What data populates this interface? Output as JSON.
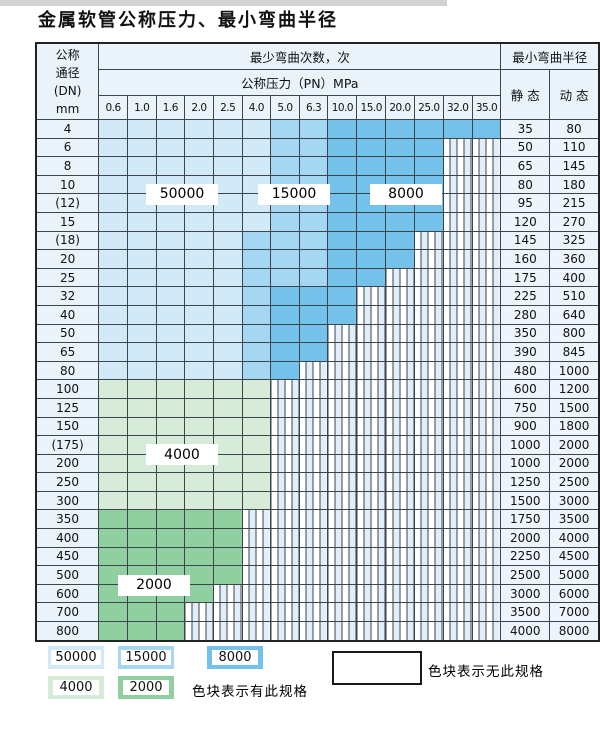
{
  "title": "金属软管公称压力、最小弯曲半径",
  "colors": {
    "light_blue": "#d2e9f8",
    "medium_blue": "#a6d7f2",
    "dark_blue": "#74c2ea",
    "light_green": "#d7ecd8",
    "medium_green": "#90cfa0",
    "header_bg": "#eaf2fa",
    "grid_line": "#3a454c"
  },
  "table": {
    "corner_header": [
      "公称",
      "通径",
      "(DN)",
      "mm"
    ],
    "bend_times_header": "最少弯曲次数，次",
    "radius_header": "最小弯曲半径",
    "pressure_header": "公称压力（PN）MPa",
    "static_label": "静 态",
    "dynamic_label": "动 态",
    "pressure_columns": [
      "0.6",
      "1.0",
      "1.6",
      "2.0",
      "2.5",
      "4.0",
      "5.0",
      "6.3",
      "10.0",
      "15.0",
      "20.0",
      "25.0",
      "32.0",
      "35.0"
    ],
    "cell_legend": "L=50000次 M=15000次 D=8000次 G=4000次 H=2000次 S=无此规格",
    "rows": [
      {
        "dn": "4",
        "cells": "LLLLLLMMDDDDDD",
        "static": "35",
        "dynamic": "80"
      },
      {
        "dn": "6",
        "cells": "LLLLLLMMDDDDSS",
        "static": "50",
        "dynamic": "110"
      },
      {
        "dn": "8",
        "cells": "LLLLLLMMDDDDSS",
        "static": "65",
        "dynamic": "145"
      },
      {
        "dn": "10",
        "cells": "LLLLLLMMDDDDSS",
        "static": "80",
        "dynamic": "180"
      },
      {
        "dn": "(12)",
        "cells": "LLLLLLMMDDDDSS",
        "static": "95",
        "dynamic": "215"
      },
      {
        "dn": "15",
        "cells": "LLLLLLMMDDDDSS",
        "static": "120",
        "dynamic": "270"
      },
      {
        "dn": "(18)",
        "cells": "LLLLLMMMDDDSSS",
        "static": "145",
        "dynamic": "325"
      },
      {
        "dn": "20",
        "cells": "LLLLLMMMDDDSSS",
        "static": "160",
        "dynamic": "360"
      },
      {
        "dn": "25",
        "cells": "LLLLLMMMDDSSSS",
        "static": "175",
        "dynamic": "400"
      },
      {
        "dn": "32",
        "cells": "LLLLLMDDDSSSSS",
        "static": "225",
        "dynamic": "510"
      },
      {
        "dn": "40",
        "cells": "LLLLLMDDDSSSSS",
        "static": "280",
        "dynamic": "640"
      },
      {
        "dn": "50",
        "cells": "LLLLLMDDSSSSSS",
        "static": "350",
        "dynamic": "800"
      },
      {
        "dn": "65",
        "cells": "LLLLLMDDSSSSSS",
        "static": "390",
        "dynamic": "845"
      },
      {
        "dn": "80",
        "cells": "LLLLLMDSSSSSSS",
        "static": "480",
        "dynamic": "1000"
      },
      {
        "dn": "100",
        "cells": "GGGGGGSSSSSSSS",
        "static": "600",
        "dynamic": "1200"
      },
      {
        "dn": "125",
        "cells": "GGGGGGSSSSSSSS",
        "static": "750",
        "dynamic": "1500"
      },
      {
        "dn": "150",
        "cells": "GGGGGGSSSSSSSS",
        "static": "900",
        "dynamic": "1800"
      },
      {
        "dn": "(175)",
        "cells": "GGGGGGSSSSSSSS",
        "static": "1000",
        "dynamic": "2000"
      },
      {
        "dn": "200",
        "cells": "GGGGGGSSSSSSSS",
        "static": "1000",
        "dynamic": "2000"
      },
      {
        "dn": "250",
        "cells": "GGGGGGSSSSSSSS",
        "static": "1250",
        "dynamic": "2500"
      },
      {
        "dn": "300",
        "cells": "GGGGGGSSSSSSSS",
        "static": "1500",
        "dynamic": "3000"
      },
      {
        "dn": "350",
        "cells": "HHHHHSSSSSSSSS",
        "static": "1750",
        "dynamic": "3500"
      },
      {
        "dn": "400",
        "cells": "HHHHHSSSSSSSSS",
        "static": "2000",
        "dynamic": "4000"
      },
      {
        "dn": "450",
        "cells": "HHHHHSSSSSSSSS",
        "static": "2250",
        "dynamic": "4500"
      },
      {
        "dn": "500",
        "cells": "HHHHHSSSSSSSSS",
        "static": "2500",
        "dynamic": "5000"
      },
      {
        "dn": "600",
        "cells": "HHHHSSSSSSSSSS",
        "static": "3000",
        "dynamic": "6000"
      },
      {
        "dn": "700",
        "cells": "HHHSSSSSSSSSSS",
        "static": "3500",
        "dynamic": "7000"
      },
      {
        "dn": "800",
        "cells": "HHHSSSSSSSSSSS",
        "static": "4000",
        "dynamic": "8000"
      }
    ]
  },
  "overlay_labels": [
    {
      "text": "50000",
      "col": 3,
      "row": 4
    },
    {
      "text": "15000",
      "col": 7,
      "row": 4
    },
    {
      "text": "8000",
      "col": 11,
      "row": 4
    },
    {
      "text": "4000",
      "col": 3,
      "row": 18
    },
    {
      "text": "2000",
      "col": 2,
      "row": 25
    }
  ],
  "legend": {
    "swatches_row1": [
      {
        "label": "50000",
        "color": "#d2e9f8"
      },
      {
        "label": "15000",
        "color": "#a6d7f2"
      },
      {
        "label": "8000",
        "color": "#74c2ea"
      }
    ],
    "swatches_row2": [
      {
        "label": "4000",
        "color": "#d7ecd8"
      },
      {
        "label": "2000",
        "color": "#90cfa0"
      }
    ],
    "has_spec_text": "色块表示有此规格",
    "no_spec_text": "色块表示无此规格"
  }
}
